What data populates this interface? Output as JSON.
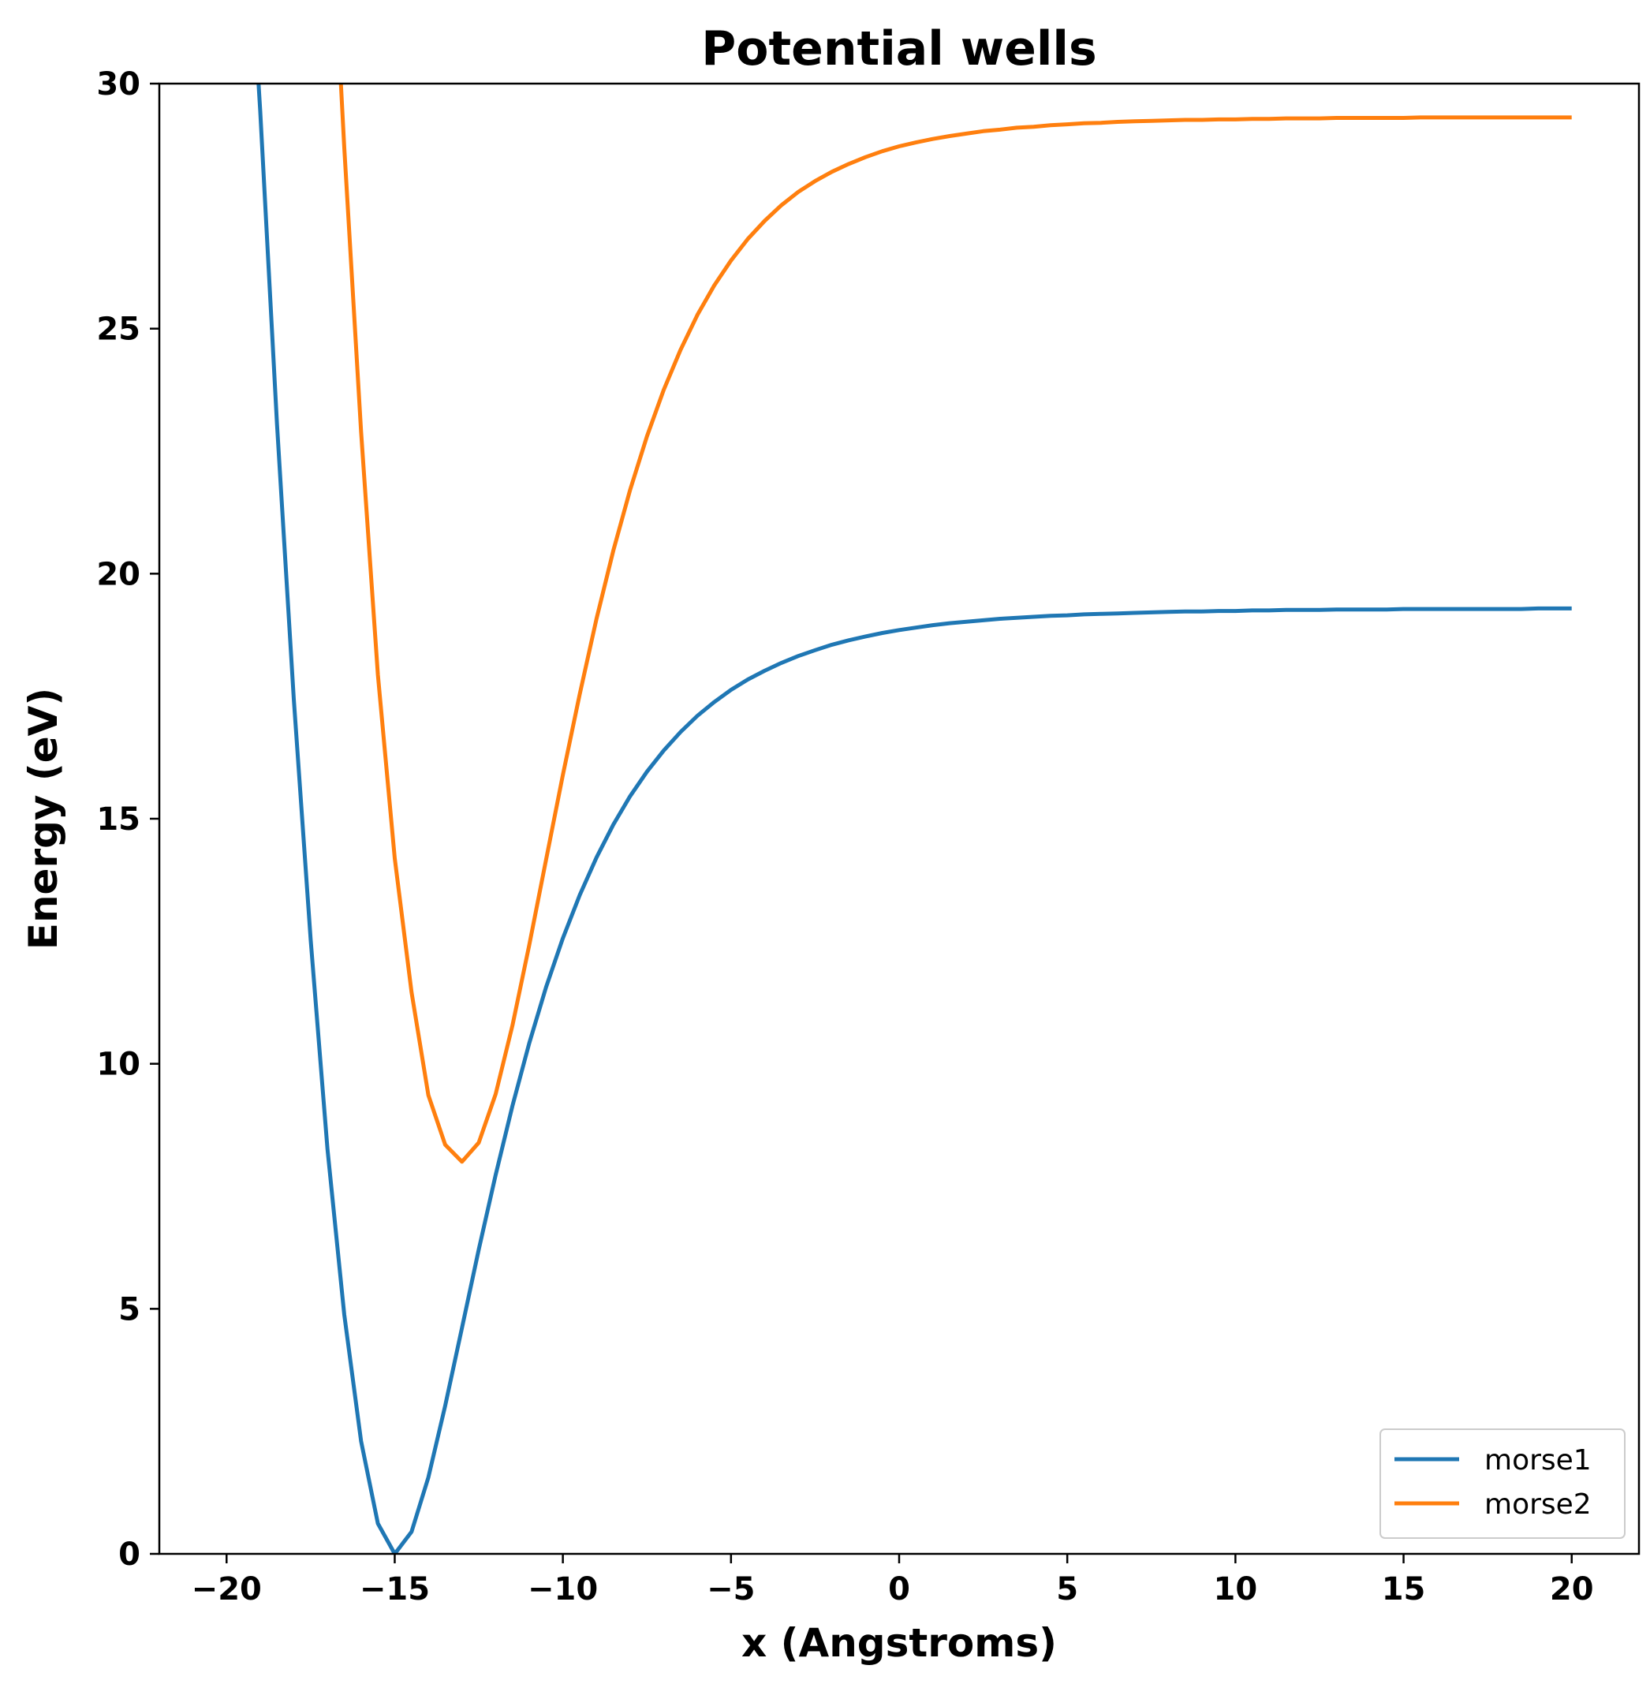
{
  "chart_data": {
    "type": "line",
    "title": "Potential wells",
    "xlabel": "x (Angstroms)",
    "ylabel": "Energy (eV)",
    "xlim": [
      -22,
      22
    ],
    "ylim": [
      0,
      30
    ],
    "x_ticks": [
      -20,
      -15,
      -10,
      -5,
      0,
      5,
      10,
      15,
      20
    ],
    "x_tick_labels": [
      "−20",
      "−15",
      "−10",
      "−5",
      "0",
      "5",
      "10",
      "15",
      "20"
    ],
    "y_ticks": [
      0,
      5,
      10,
      15,
      20,
      25,
      30
    ],
    "y_tick_labels": [
      "0",
      "5",
      "10",
      "15",
      "20",
      "25",
      "30"
    ],
    "grid": false,
    "legend_position": "lower-right",
    "series": [
      {
        "name": "morse1",
        "color": "#1f77b4",
        "x": [
          -19.05,
          -19.0,
          -18.5,
          -18.0,
          -17.5,
          -17.0,
          -16.5,
          -16.0,
          -15.5,
          -15.0,
          -14.5,
          -14.0,
          -13.5,
          -13.0,
          -12.5,
          -12.0,
          -11.5,
          -11.0,
          -10.5,
          -10.0,
          -9.5,
          -9.0,
          -8.5,
          -8.0,
          -7.5,
          -7.0,
          -6.5,
          -6.0,
          -5.5,
          -5.0,
          -4.5,
          -4.0,
          -3.5,
          -3.0,
          -2.5,
          -2.0,
          -1.5,
          -1.0,
          -0.5,
          0.0,
          0.5,
          1.0,
          1.5,
          2.0,
          2.5,
          3.0,
          3.5,
          4.0,
          4.5,
          5.0,
          5.5,
          6.0,
          6.5,
          7.0,
          7.5,
          8.0,
          8.5,
          9.0,
          9.5,
          10.0,
          10.5,
          11.0,
          11.5,
          12.0,
          12.5,
          13.0,
          13.5,
          14.0,
          14.5,
          15.0,
          15.5,
          16.0,
          16.5,
          17.0,
          17.5,
          18.0,
          18.5,
          19.0,
          19.5,
          20.0
        ],
        "values": [
          30.0,
          29.45,
          23.05,
          17.44,
          12.53,
          8.26,
          4.88,
          2.3,
          0.62,
          0.0,
          0.45,
          1.56,
          3.02,
          4.61,
          6.21,
          7.73,
          9.14,
          10.42,
          11.56,
          12.56,
          13.44,
          14.21,
          14.88,
          15.46,
          15.96,
          16.39,
          16.77,
          17.1,
          17.38,
          17.63,
          17.84,
          18.02,
          18.18,
          18.32,
          18.44,
          18.55,
          18.64,
          18.72,
          18.79,
          18.85,
          18.9,
          18.95,
          18.99,
          19.02,
          19.05,
          19.08,
          19.1,
          19.12,
          19.14,
          19.15,
          19.17,
          19.18,
          19.19,
          19.2,
          19.21,
          19.22,
          19.23,
          19.23,
          19.24,
          19.24,
          19.25,
          19.25,
          19.26,
          19.26,
          19.26,
          19.27,
          19.27,
          19.27,
          19.27,
          19.28,
          19.28,
          19.28,
          19.28,
          19.28,
          19.28,
          19.28,
          19.28,
          19.29,
          19.29,
          19.29
        ]
      },
      {
        "name": "morse2",
        "color": "#ff7f0e",
        "x": [
          -16.6,
          -16.5,
          -16.0,
          -15.5,
          -15.0,
          -14.5,
          -14.0,
          -13.5,
          -13.0,
          -12.5,
          -12.0,
          -11.5,
          -11.0,
          -10.5,
          -10.0,
          -9.5,
          -9.0,
          -8.5,
          -8.0,
          -7.5,
          -7.0,
          -6.5,
          -6.0,
          -5.5,
          -5.0,
          -4.5,
          -4.0,
          -3.5,
          -3.0,
          -2.5,
          -2.0,
          -1.5,
          -1.0,
          -0.5,
          0.0,
          0.5,
          1.0,
          1.5,
          2.0,
          2.5,
          3.0,
          3.5,
          4.0,
          4.5,
          5.0,
          5.5,
          6.0,
          6.5,
          7.0,
          7.5,
          8.0,
          8.5,
          9.0,
          9.5,
          10.0,
          10.5,
          11.0,
          11.5,
          12.0,
          12.5,
          13.0,
          13.5,
          14.0,
          14.5,
          15.0,
          15.5,
          16.0,
          16.5,
          17.0,
          17.5,
          18.0,
          18.5,
          19.0,
          19.5,
          20.0
        ],
        "values": [
          30.0,
          28.69,
          22.9,
          17.94,
          14.19,
          11.46,
          9.36,
          8.35,
          8.0,
          8.39,
          9.38,
          10.78,
          12.42,
          14.16,
          15.89,
          17.54,
          19.08,
          20.47,
          21.71,
          22.8,
          23.75,
          24.57,
          25.28,
          25.88,
          26.39,
          26.83,
          27.2,
          27.52,
          27.79,
          28.01,
          28.2,
          28.36,
          28.5,
          28.62,
          28.72,
          28.8,
          28.87,
          28.93,
          28.98,
          29.03,
          29.06,
          29.1,
          29.12,
          29.15,
          29.17,
          29.19,
          29.2,
          29.22,
          29.23,
          29.24,
          29.25,
          29.26,
          29.26,
          29.27,
          29.27,
          29.28,
          29.28,
          29.29,
          29.29,
          29.29,
          29.3,
          29.3,
          29.3,
          29.3,
          29.3,
          29.31,
          29.31,
          29.31,
          29.31,
          29.31,
          29.31,
          29.31,
          29.31,
          29.31,
          29.31
        ]
      }
    ]
  }
}
